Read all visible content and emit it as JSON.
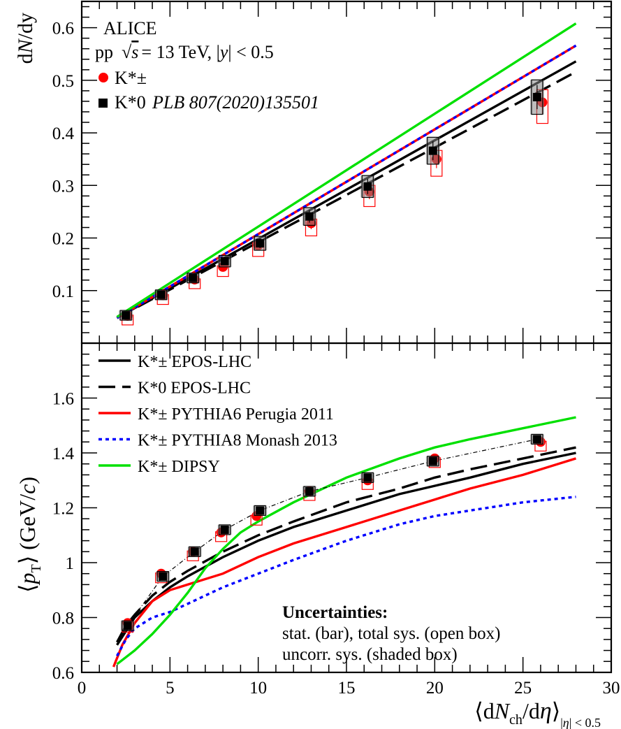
{
  "chart_data": [
    {
      "panel": "top",
      "type": "scatter",
      "ylabel": "dN/dy",
      "ylim": [
        0.0,
        0.65
      ],
      "xlim": [
        0,
        30
      ],
      "yticks": [
        0.1,
        0.2,
        0.3,
        0.4,
        0.5,
        0.6
      ],
      "ytick_labels": [
        "0.1",
        "0.2",
        "0.3",
        "0.4",
        "0.5",
        "0.6"
      ],
      "text": {
        "experiment": "ALICE",
        "system_prefix": "pp",
        "system_energy": "= 13 TeV, |",
        "system_y": "y",
        "system_suffix": "| < 0.5",
        "kstar_pm": "K*±",
        "kstar_0": "K*0",
        "ref": "PLB 807(2020)135501"
      },
      "colors": {
        "kstar_pm": "#ff0000",
        "kstar_0": "#000000",
        "epos": "#000000",
        "pythia6": "#ff0000",
        "pythia8": "#0000ff",
        "dipsy": "#00e000"
      },
      "series": [
        {
          "name": "K*±",
          "marker": "circle",
          "x": [
            2.6,
            4.6,
            6.4,
            8.0,
            10.0,
            13.0,
            16.3,
            20.1,
            26.1
          ],
          "values": [
            0.052,
            0.091,
            0.121,
            0.145,
            0.186,
            0.228,
            0.288,
            0.35,
            0.458
          ]
        },
        {
          "name": "K*0 PLB 807(2020)135501",
          "marker": "square",
          "x": [
            2.5,
            4.5,
            6.3,
            8.1,
            10.1,
            12.9,
            16.2,
            19.9,
            25.8
          ],
          "values": [
            0.053,
            0.092,
            0.124,
            0.156,
            0.19,
            0.241,
            0.298,
            0.366,
            0.468
          ]
        },
        {
          "name": "K*± EPOS-LHC",
          "line": "solid",
          "color": "#000000",
          "x": [
            2,
            28
          ],
          "values": [
            0.048,
            0.536
          ]
        },
        {
          "name": "K*0 EPOS-LHC",
          "line": "dash",
          "color": "#000000",
          "x": [
            2,
            28
          ],
          "values": [
            0.048,
            0.516
          ]
        },
        {
          "name": "K*± PYTHIA6 Perugia 2011",
          "line": "solid",
          "color": "#ff0000",
          "x": [
            2,
            28
          ],
          "values": [
            0.048,
            0.566
          ]
        },
        {
          "name": "K*± PYTHIA8 Monash 2013",
          "line": "dot",
          "color": "#0000ff",
          "x": [
            2,
            28
          ],
          "values": [
            0.048,
            0.566
          ]
        },
        {
          "name": "K*± DIPSY",
          "line": "solid",
          "color": "#00e000",
          "x": [
            2,
            28
          ],
          "values": [
            0.05,
            0.608
          ]
        }
      ]
    },
    {
      "panel": "bottom",
      "type": "line",
      "ylabel": "⟨pT⟩ (GeV/c)",
      "xlabel": "⟨dNch/dη⟩|η| < 0.5",
      "ylim": [
        0.6,
        1.8
      ],
      "xlim": [
        0,
        30
      ],
      "yticks": [
        0.6,
        0.8,
        1.0,
        1.2,
        1.4,
        1.6
      ],
      "ytick_labels": [
        "0.6",
        "0.8",
        "1",
        "1.2",
        "1.4",
        "1.6"
      ],
      "xticks": [
        0,
        5,
        10,
        15,
        20,
        25,
        30
      ],
      "xtick_labels": [
        "0",
        "5",
        "10",
        "15",
        "20",
        "25",
        "30"
      ],
      "legend": [
        {
          "label": "K*± EPOS-LHC",
          "line": "solid",
          "color": "#000000"
        },
        {
          "label": "K*0 EPOS-LHC",
          "line": "dash",
          "color": "#000000"
        },
        {
          "label": "K*± PYTHIA6 Perugia 2011",
          "line": "solid",
          "color": "#ff0000"
        },
        {
          "label": "K*± PYTHIA8 Monash 2013",
          "line": "dot",
          "color": "#0000ff"
        },
        {
          "label": "K*± DIPSY",
          "line": "solid",
          "color": "#00e000"
        }
      ],
      "uncertainties_text": {
        "title": "Uncertainties:",
        "line1": "stat. (bar), total sys. (open box)",
        "line2": "uncorr. sys. (shaded box)"
      },
      "series": [
        {
          "name": "K*±",
          "marker": "circle",
          "x": [
            2.6,
            4.5,
            6.3,
            7.9,
            9.9,
            12.9,
            16.2,
            20.0,
            26.0
          ],
          "values": [
            0.78,
            0.96,
            1.04,
            1.11,
            1.17,
            1.26,
            1.3,
            1.38,
            1.44
          ]
        },
        {
          "name": "K*0",
          "marker": "square",
          "x": [
            2.6,
            4.6,
            6.4,
            8.1,
            10.1,
            12.9,
            16.2,
            19.9,
            25.8
          ],
          "values": [
            0.77,
            0.95,
            1.04,
            1.12,
            1.19,
            1.26,
            1.31,
            1.37,
            1.45
          ]
        },
        {
          "name": "K*± EPOS-LHC",
          "line": "solid",
          "color": "#000000",
          "x": [
            2.0,
            2.5,
            3,
            4,
            5,
            6,
            8,
            10,
            12,
            15,
            18,
            20,
            22,
            25,
            28
          ],
          "values": [
            0.7,
            0.75,
            0.8,
            0.86,
            0.91,
            0.95,
            1.02,
            1.08,
            1.13,
            1.19,
            1.25,
            1.28,
            1.31,
            1.36,
            1.4
          ]
        },
        {
          "name": "K*0 EPOS-LHC",
          "line": "dash",
          "color": "#000000",
          "x": [
            2.0,
            2.5,
            3,
            4,
            5,
            6,
            8,
            10,
            12,
            15,
            18,
            20,
            22,
            25,
            28
          ],
          "values": [
            0.71,
            0.77,
            0.81,
            0.88,
            0.93,
            0.97,
            1.04,
            1.1,
            1.15,
            1.22,
            1.27,
            1.31,
            1.34,
            1.38,
            1.42
          ]
        },
        {
          "name": "K*± PYTHIA6 Perugia 2011",
          "line": "solid",
          "color": "#ff0000",
          "x": [
            1.8,
            2.3,
            3,
            4,
            5,
            6,
            8,
            10,
            12,
            15,
            18,
            20,
            22,
            25,
            28
          ],
          "values": [
            0.62,
            0.7,
            0.78,
            0.86,
            0.9,
            0.92,
            0.96,
            1.02,
            1.07,
            1.13,
            1.19,
            1.23,
            1.27,
            1.32,
            1.38
          ]
        },
        {
          "name": "K*± PYTHIA8 Monash 2013",
          "line": "dot",
          "color": "#0000ff",
          "x": [
            2.0,
            2.5,
            3,
            4,
            5,
            6,
            8,
            10,
            12,
            15,
            18,
            20,
            22,
            25,
            28
          ],
          "values": [
            0.66,
            0.72,
            0.76,
            0.8,
            0.82,
            0.85,
            0.91,
            0.96,
            1.01,
            1.08,
            1.14,
            1.17,
            1.19,
            1.22,
            1.24
          ]
        },
        {
          "name": "K*± DIPSY",
          "line": "solid",
          "color": "#00e000",
          "x": [
            2.0,
            3,
            4,
            5,
            6,
            7,
            8,
            9,
            10,
            12,
            15,
            18,
            20,
            22,
            25,
            28
          ],
          "values": [
            0.63,
            0.68,
            0.74,
            0.81,
            0.89,
            0.98,
            1.05,
            1.11,
            1.15,
            1.22,
            1.31,
            1.38,
            1.42,
            1.45,
            1.49,
            1.53
          ]
        }
      ]
    }
  ]
}
